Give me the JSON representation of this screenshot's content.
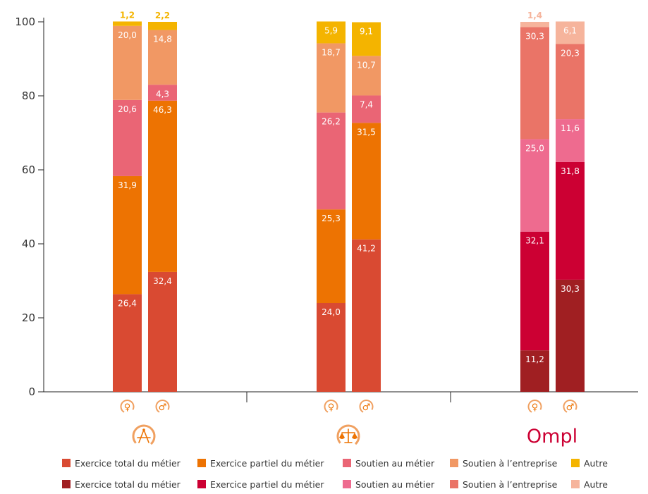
{
  "chart_data": {
    "type": "bar",
    "stacked": true,
    "ylim": [
      0,
      100
    ],
    "yticks": [
      0,
      20,
      40,
      60,
      80,
      100
    ],
    "grid": false,
    "legend_position": "bottom",
    "bars": [
      {
        "group": "group-1",
        "sex": "female",
        "sex_symbol": "♀",
        "palette": "A",
        "values": [
          26.4,
          31.9,
          20.6,
          20.0,
          1.2
        ],
        "labels": [
          "26,4",
          "31,9",
          "20,6",
          "20,0",
          "1,2"
        ]
      },
      {
        "group": "group-1",
        "sex": "male",
        "sex_symbol": "♂",
        "palette": "A",
        "values": [
          32.4,
          46.3,
          4.3,
          14.8,
          2.2
        ],
        "labels": [
          "32,4",
          "46,3",
          "4,3",
          "14,8",
          "2,2"
        ]
      },
      {
        "group": "group-2",
        "sex": "female",
        "sex_symbol": "♀",
        "palette": "A",
        "values": [
          24.0,
          25.3,
          26.2,
          18.7,
          5.9
        ],
        "labels": [
          "24,0",
          "25,3",
          "26,2",
          "18,7",
          "5,9"
        ]
      },
      {
        "group": "group-2",
        "sex": "male",
        "sex_symbol": "♂",
        "palette": "A",
        "values": [
          41.2,
          31.5,
          7.4,
          10.7,
          9.1
        ],
        "labels": [
          "41,2",
          "31,5",
          "7,4",
          "10,7",
          "9,1"
        ]
      },
      {
        "group": "ompl",
        "sex": "female",
        "sex_symbol": "♀",
        "palette": "B",
        "values": [
          11.2,
          32.1,
          25.0,
          30.3,
          1.4
        ],
        "labels": [
          "11,2",
          "32,1",
          "25,0",
          "30,3",
          "1,4"
        ]
      },
      {
        "group": "ompl",
        "sex": "male",
        "sex_symbol": "♂",
        "palette": "B",
        "values": [
          30.3,
          31.8,
          11.6,
          20.3,
          6.1
        ],
        "labels": [
          "30,3",
          "31,8",
          "11,6",
          "20,3",
          "6,1"
        ]
      }
    ],
    "palettes": {
      "A": [
        "#d94a32",
        "#ed7302",
        "#ea6575",
        "#f19864",
        "#f4b400"
      ],
      "B": [
        "#a01f22",
        "#cc0033",
        "#ee6b8f",
        "#ea7467",
        "#f6b49c"
      ]
    },
    "label_colors": {
      "A": [
        "#ffffff",
        "#ffffff",
        "#ffffff",
        "#ffffff",
        "#ffffff"
      ],
      "B": [
        "#ffffff",
        "#ffffff",
        "#ffffff",
        "#ffffff",
        "#ffffff"
      ]
    },
    "outside_label_colors": {
      "A": "#f4b400",
      "B": "#f6b49c"
    },
    "legend": [
      {
        "palette": "A",
        "items": [
          "Exercice total du métier",
          "Exercice partiel du métier",
          "Soutien au métier",
          "Soutien à l’entreprise",
          "Autre"
        ]
      },
      {
        "palette": "B",
        "items": [
          "Exercice total du métier",
          "Exercice partiel du métier",
          "Soutien au métier",
          "Soutien à l’entreprise",
          "Autre"
        ]
      }
    ],
    "group_logos": [
      {
        "group": "group-1",
        "icon": "compass-logo-icon"
      },
      {
        "group": "group-2",
        "icon": "scales-logo-icon"
      },
      {
        "group": "ompl",
        "text": "Ompl",
        "color": "#cc0033"
      }
    ]
  }
}
